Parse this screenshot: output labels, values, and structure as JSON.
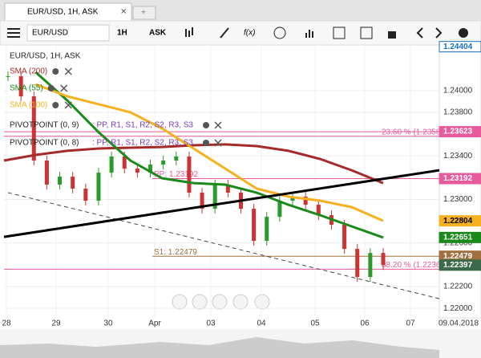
{
  "tabs": [
    {
      "label": "EUR/USD, 1H, ASK"
    }
  ],
  "toolbar": {
    "symbol": "EUR/USD",
    "interval": "1H",
    "side": "ASK",
    "fx": "f(x)"
  },
  "chart": {
    "type": "candlestick",
    "title": "EUR/USD, 1H, ASK",
    "ylim": [
      1.2192,
      1.2442
    ],
    "yticks": [
      {
        "value": 1.24,
        "label": "1.24000"
      },
      {
        "value": 1.238,
        "label": "1.23800"
      },
      {
        "value": 1.234,
        "label": "1.23400"
      },
      {
        "value": 1.23,
        "label": "1.23000"
      },
      {
        "value": 1.226,
        "label": "1.22600"
      },
      {
        "value": 1.222,
        "label": "1.22200"
      },
      {
        "value": 1.22,
        "label": "1.22000"
      }
    ],
    "xlabels": [
      "28",
      "29",
      "30",
      "Apr",
      "03",
      "04",
      "05",
      "06",
      "07"
    ],
    "date": "09.04.2018",
    "closes": [
      1.24133,
      1.23948,
      1.23358,
      1.23137,
      1.2321,
      1.231,
      1.22989,
      1.23247,
      1.23395,
      1.23284,
      1.23247,
      1.23321,
      1.23358,
      1.23395,
      1.23063,
      1.22915,
      1.23137,
      1.23063,
      1.22915,
      1.2262,
      1.22841,
      1.22989,
      1.23026,
      1.22952,
      1.22856,
      1.22768,
      1.22546,
      1.22288,
      1.22509,
      1.22397
    ],
    "indicators": [
      {
        "name": "SMA (200)",
        "color": "#a52a2a",
        "values": [
          1.23358,
          1.2341,
          1.23447,
          1.23469,
          1.23476,
          1.23483,
          1.23498,
          1.23506,
          1.23491,
          1.23447,
          1.23373,
          1.23269,
          1.23151
        ]
      },
      {
        "name": "SMA (55)",
        "color": "#1a8a1a",
        "values": [
          null,
          1.2417,
          1.23911,
          1.23616,
          1.23358,
          1.23196,
          1.23151,
          1.23137,
          1.23063,
          1.22952,
          1.22856,
          1.22753,
          1.22651
        ]
      },
      {
        "name": "SMA (100)",
        "color": "#f5b120",
        "values": [
          null,
          1.24059,
          1.23948,
          1.23875,
          1.23801,
          1.23653,
          1.23469,
          1.23284,
          1.231,
          1.23026,
          1.22989,
          1.2293,
          1.22804
        ]
      }
    ],
    "pivots": [
      {
        "name": "PIVOTPOINT (0, 9)",
        "levels": ": PP, R1, S1, R2, S2, R3, S3"
      },
      {
        "name": "PIVOTPOINT (0, 8)",
        "levels": ": PP, R1, S1, R2, S2, R3, S3"
      }
    ],
    "trendline": [
      1.22657,
      1.23269
    ],
    "dashed": [
      1.23063,
      1.22089
    ],
    "levels": [
      {
        "value": 1.23623,
        "color": "#e75a9c",
        "label": null
      },
      {
        "value": 1.23581,
        "color": "#e75a9c",
        "label": "23.60 % (1.23581)"
      },
      {
        "value": 1.23192,
        "color": "#e75a9c",
        "label": "PP: 1.23192"
      },
      {
        "value": 1.22479,
        "color": "#a07040",
        "label": "S1: 1.22479"
      },
      {
        "value": 1.2236,
        "color": "#e75a9c",
        "label": "38.20 % (1.2236)"
      }
    ],
    "tags": [
      {
        "value": 1.24404,
        "label": "1.24404",
        "bg": "#ffffff",
        "fg": "#1a6fc0"
      },
      {
        "value": 1.23623,
        "label": "1.23623",
        "bg": "#e75a9c",
        "fg": "#ffffff"
      },
      {
        "value": 1.23192,
        "label": "1.23192",
        "bg": "#e75a9c",
        "fg": "#ffffff"
      },
      {
        "value": 1.22804,
        "label": "1.22804",
        "bg": "#f5b120",
        "fg": "#000000"
      },
      {
        "value": 1.22651,
        "label": "1.22651",
        "bg": "#1a8a1a",
        "fg": "#ffffff"
      },
      {
        "value": 1.22479,
        "label": "1.22479",
        "bg": "#a07040",
        "fg": "#ffffff"
      },
      {
        "value": 1.22397,
        "label": "1.22397",
        "bg": "#3a6a4a",
        "fg": "#ffffff"
      }
    ]
  }
}
